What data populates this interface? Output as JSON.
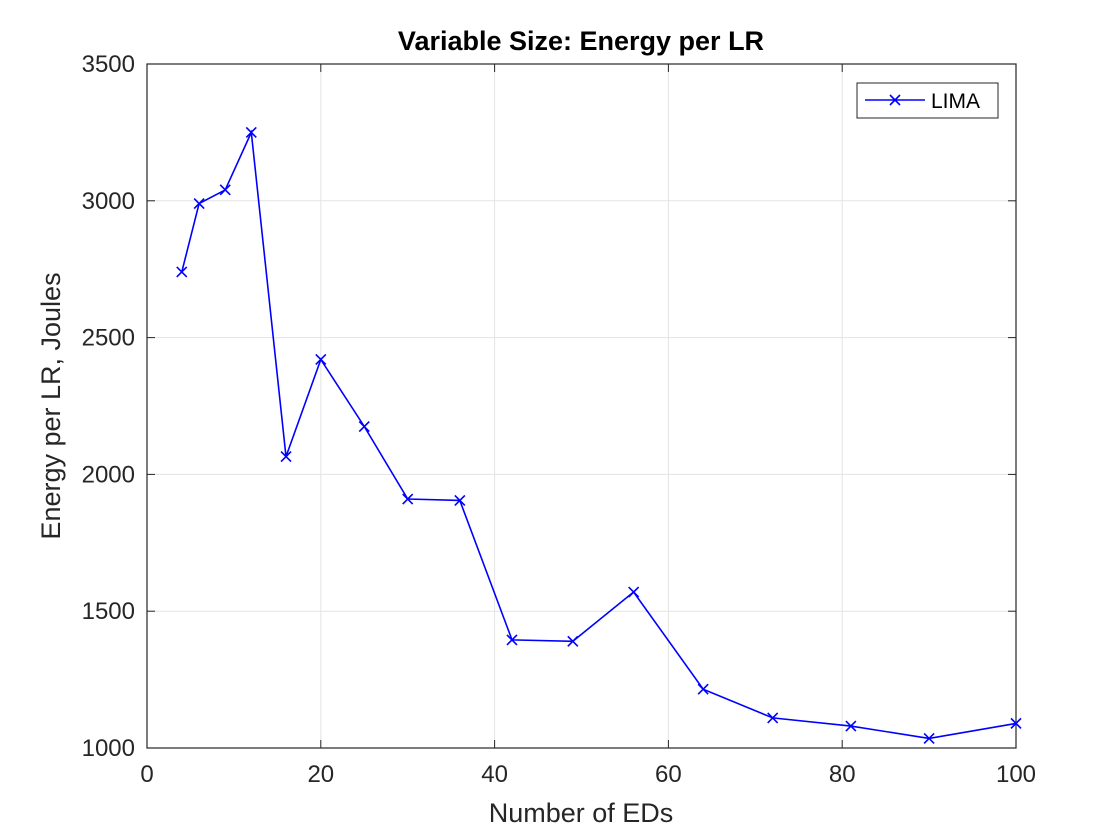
{
  "chart_data": {
    "type": "line",
    "title": "Variable Size: Energy per LR",
    "xlabel": "Number of EDs",
    "ylabel": "Energy per LR, Joules",
    "xlim": [
      0,
      100
    ],
    "ylim": [
      1000,
      3500
    ],
    "xticks": [
      0,
      20,
      40,
      60,
      80,
      100
    ],
    "yticks": [
      1000,
      1500,
      2000,
      2500,
      3000,
      3500
    ],
    "grid": true,
    "legend_position": "top-right",
    "series": [
      {
        "name": "LIMA",
        "color": "#0000ff",
        "marker": "x",
        "x": [
          4,
          6,
          9,
          12,
          16,
          20,
          25,
          30,
          36,
          42,
          49,
          56,
          64,
          72,
          81,
          90,
          100
        ],
        "y": [
          2740,
          2990,
          3040,
          3250,
          2065,
          2420,
          2175,
          1910,
          1905,
          1395,
          1390,
          1570,
          1215,
          1110,
          1080,
          1035,
          1090
        ]
      }
    ]
  }
}
